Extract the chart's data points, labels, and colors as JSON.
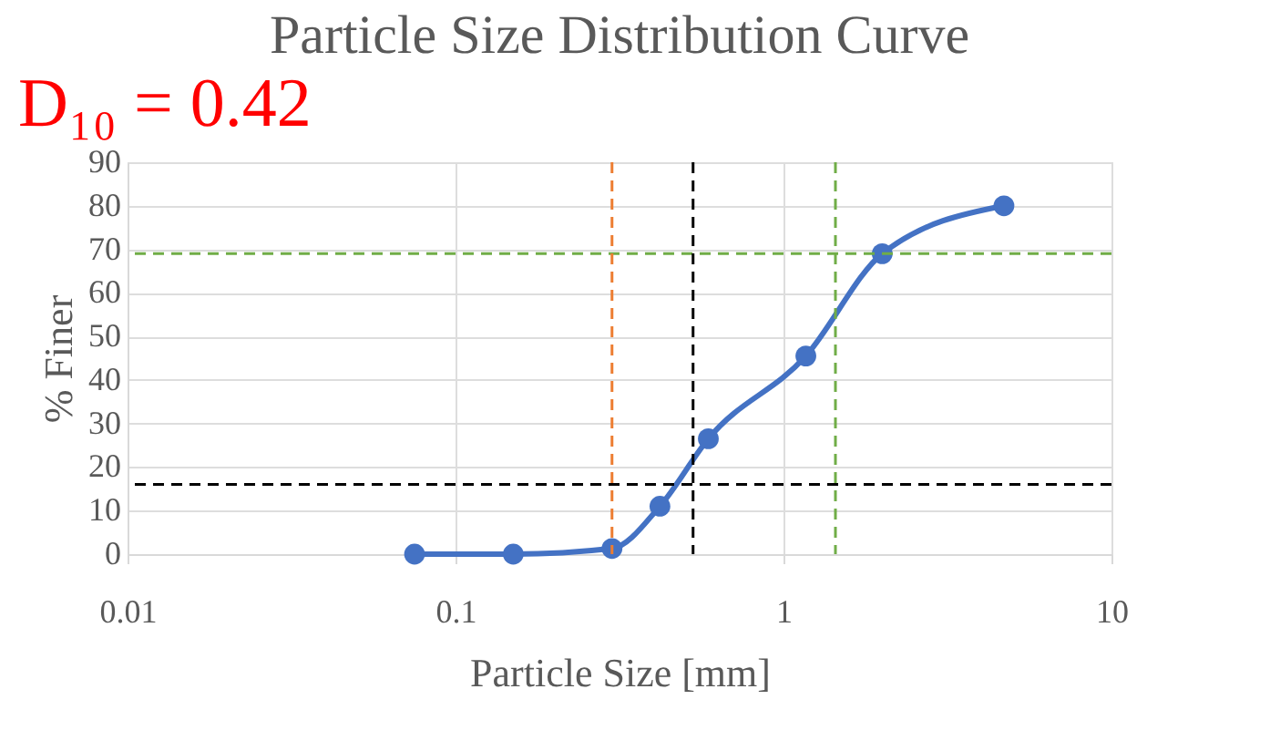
{
  "chart_data": {
    "type": "line",
    "title": "Particle Size Distribution Curve",
    "xlabel": "Particle Size [mm]",
    "ylabel": "% Finer",
    "annotations": [
      "D₁₀ = 0.42"
    ],
    "x": [
      0.075,
      0.15,
      0.3,
      0.42,
      0.59,
      1.17,
      2.0,
      4.7
    ],
    "series": [
      {
        "color": "#4472c4",
        "values": [
          0,
          0,
          1.3,
          11,
          26.5,
          45.5,
          69,
          80
        ]
      }
    ],
    "log": "x",
    "xlim": [
      0.01,
      10
    ],
    "xticks": [
      0.01,
      0.1,
      1,
      10
    ],
    "ylim": [
      0,
      90
    ],
    "yticks": [
      0,
      10,
      20,
      30,
      40,
      50,
      60,
      70,
      80,
      90
    ],
    "ref_lines": [
      {
        "axis": "y",
        "value": 69,
        "color": "#70ad47",
        "line_style": "dashed"
      },
      {
        "axis": "x",
        "value": 1.44,
        "color": "#70ad47",
        "line_style": "dashed"
      },
      {
        "axis": "y",
        "value": 16,
        "color": "#000000",
        "line_style": "dashed"
      },
      {
        "axis": "x",
        "value": 0.53,
        "color": "#000000",
        "line_style": "dashed"
      },
      {
        "axis": "x",
        "value": 0.3,
        "color": "#ed7d31",
        "line_style": "dashed"
      }
    ],
    "grid": true,
    "legend": false,
    "marker": "circle",
    "line_style": "solid"
  }
}
